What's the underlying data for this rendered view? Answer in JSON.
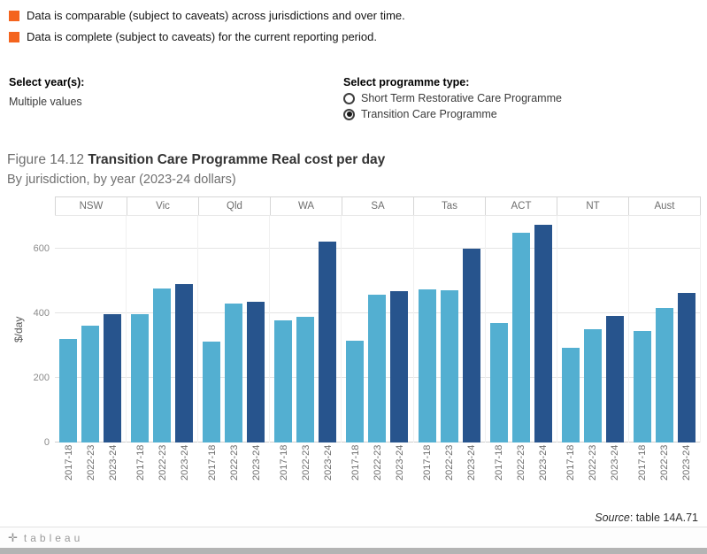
{
  "legend": {
    "items": [
      {
        "label": "Data is comparable (subject to caveats) across jurisdictions and over time.",
        "color": "#f4641e"
      },
      {
        "label": "Data is complete (subject to caveats) for the current reporting period.",
        "color": "#f4641e"
      }
    ]
  },
  "filters": {
    "year": {
      "label": "Select year(s):",
      "value": "Multiple values"
    },
    "programme": {
      "label": "Select programme type:",
      "options": [
        {
          "label": "Short Term Restorative Care Programme",
          "selected": false
        },
        {
          "label": "Transition Care Programme",
          "selected": true
        }
      ]
    }
  },
  "title": {
    "prefix": "Figure 14.12 ",
    "main": "Transition Care Programme Real cost per day",
    "subtitle": "By jurisdiction, by year (2023-24 dollars)"
  },
  "chart_data": {
    "type": "bar",
    "title": "Figure 14.12 Transition Care Programme Real cost per day",
    "subtitle": "By jurisdiction, by year (2023-24 dollars)",
    "xlabel": "",
    "ylabel": "$/day",
    "ylim": [
      0,
      700
    ],
    "yticks": [
      0,
      200,
      400,
      600
    ],
    "grid": true,
    "legend_position": "none",
    "categories": [
      "NSW",
      "Vic",
      "Qld",
      "WA",
      "SA",
      "Tas",
      "ACT",
      "NT",
      "Aust"
    ],
    "years": [
      "2017-18",
      "2022-23",
      "2023-24"
    ],
    "bar_colors": [
      "#53afd1",
      "#53afd1",
      "#27548d"
    ],
    "values": {
      "NSW": [
        320,
        362,
        396
      ],
      "Vic": [
        397,
        477,
        490
      ],
      "Qld": [
        311,
        428,
        436
      ],
      "WA": [
        378,
        387,
        622
      ],
      "SA": [
        314,
        457,
        467
      ],
      "Tas": [
        472,
        470,
        598
      ],
      "ACT": [
        370,
        648,
        672
      ],
      "NT": [
        293,
        349,
        392
      ],
      "Aust": [
        345,
        417,
        462
      ]
    }
  },
  "source": {
    "prefix": "Source",
    "text": ": table 14A.71"
  },
  "footer": {
    "brand": "tableau",
    "logo_glyph": "✛"
  }
}
